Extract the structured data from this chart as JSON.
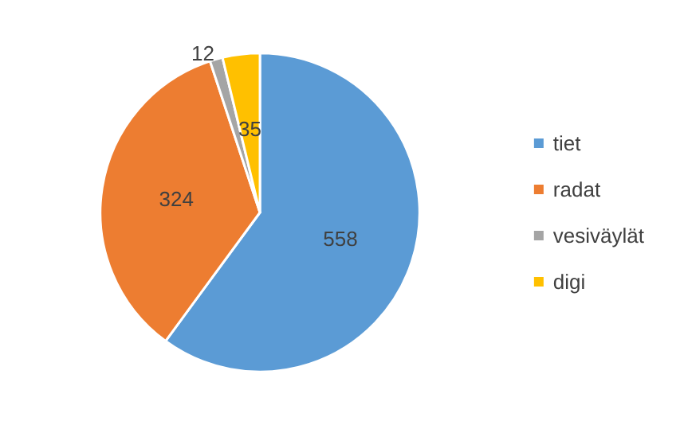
{
  "chart_data": {
    "type": "pie",
    "categories": [
      "tiet",
      "radat",
      "vesiväylät",
      "digi"
    ],
    "values": [
      558,
      324,
      12,
      35
    ],
    "colors": [
      "#5b9bd5",
      "#ed7d31",
      "#a5a5a5",
      "#ffc000"
    ],
    "data_labels": true,
    "legend": "right"
  }
}
